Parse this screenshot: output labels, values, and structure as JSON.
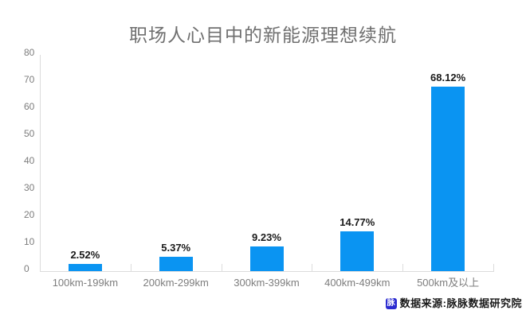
{
  "chart_data": {
    "type": "bar",
    "title": "职场人心目中的新能源理想续航",
    "categories": [
      "100km-199km",
      "200km-299km",
      "300km-399km",
      "400km-499km",
      "500km及以上"
    ],
    "values": [
      2.52,
      5.37,
      9.23,
      14.77,
      68.12
    ],
    "data_labels": [
      "2.52%",
      "5.37%",
      "9.23%",
      "14.77%",
      "68.12%"
    ],
    "xlabel": "",
    "ylabel": "",
    "ylim": [
      0,
      80
    ],
    "yticks": [
      0,
      10,
      20,
      30,
      40,
      50,
      60,
      70,
      80
    ],
    "grid": false,
    "legend_position": "none",
    "bar_color": "#0a94f2",
    "axis_color": "#dcdcdc",
    "title_color": "#6f6f6f",
    "tick_label_color": "#7d7d7d",
    "value_label_color": "#1a1a1a"
  },
  "source": {
    "logo_glyph": "脉",
    "logo_color": "#2b2bd0",
    "label": "数据来源:脉脉数据研究院"
  }
}
